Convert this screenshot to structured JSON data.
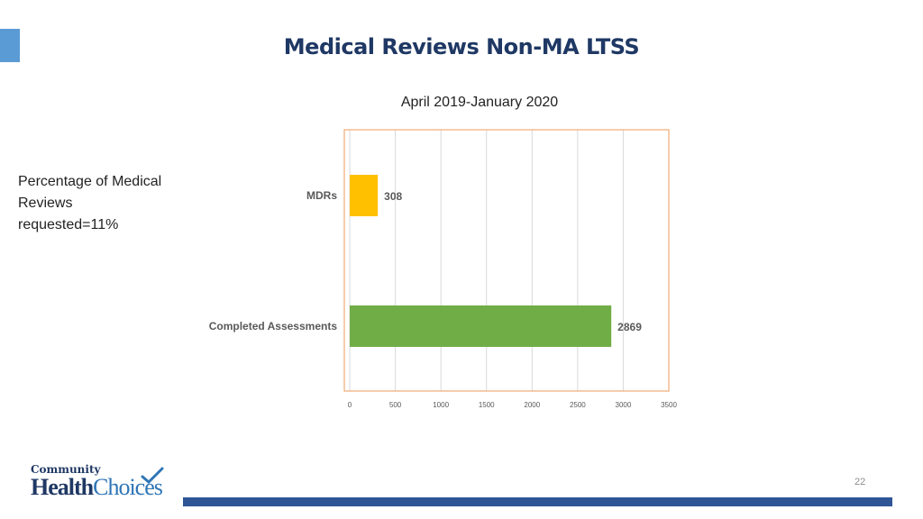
{
  "slide": {
    "title": "Medical Reviews Non-MA LTSS",
    "subtitle": "April 2019-January 2020",
    "note": "Percentage of Medical Reviews requested=11%",
    "page_number": "22"
  },
  "logo": {
    "line1": "Community",
    "word1": "Health",
    "word2": "Choices",
    "colors": {
      "primary": "#1f3864",
      "secondary": "#2e75b6"
    }
  },
  "chart_data": {
    "type": "bar",
    "orientation": "horizontal",
    "title": "April 2019-January 2020",
    "categories": [
      "MDRs",
      "Completed Assessments"
    ],
    "values": [
      308,
      2869
    ],
    "colors": [
      "#ffc000",
      "#70ad47"
    ],
    "xlabel": "",
    "ylabel": "",
    "xlim": [
      0,
      3500
    ],
    "ticks": [
      0,
      500,
      1000,
      1500,
      2000,
      2500,
      3000,
      3500
    ],
    "grid": true,
    "border_color": "#ed9b5a",
    "data_labels": true
  },
  "theme": {
    "accent": "#5b9bd5",
    "title_color": "#1f3864",
    "footer_bar": "#2f5597"
  }
}
